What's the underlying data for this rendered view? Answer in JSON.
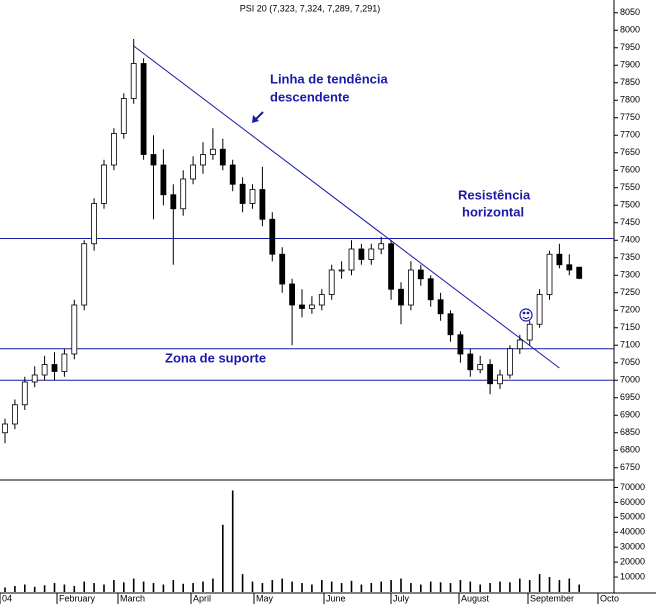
{
  "chart_data": {
    "type": "candlestick",
    "title": "PSI 20 (7,323, 7,324, 7,289, 7,291)",
    "annotations": [
      "Linha de tendência",
      "descendente",
      "Resistência",
      "horizontal",
      "Zona de suporte"
    ],
    "x_labels": [
      "04",
      "February",
      "March",
      "April",
      "May",
      "June",
      "July",
      "August",
      "September",
      "Octo"
    ],
    "open": [
      6850,
      6875,
      6930,
      6995,
      7015,
      7045,
      7025,
      7075,
      7215,
      7390,
      7505,
      7615,
      7705,
      7805,
      7905,
      7645,
      7615,
      7530,
      7490,
      7575,
      7615,
      7645,
      7660,
      7615,
      7560,
      7505,
      7545,
      7460,
      7360,
      7275,
      7215,
      7205,
      7215,
      7245,
      7315,
      7315,
      7375,
      7345,
      7375,
      7390,
      7260,
      7215,
      7315,
      7290,
      7230,
      7190,
      7130,
      7075,
      7030,
      7045,
      6990,
      7015,
      7090,
      7115,
      7160,
      7245,
      7360,
      7330,
      7323
    ],
    "high": [
      6890,
      6945,
      7010,
      7040,
      7070,
      7080,
      7090,
      7230,
      7400,
      7520,
      7630,
      7720,
      7820,
      7975,
      7920,
      7700,
      7660,
      7560,
      7600,
      7640,
      7680,
      7720,
      7690,
      7630,
      7580,
      7560,
      7610,
      7480,
      7380,
      7290,
      7260,
      7240,
      7260,
      7330,
      7340,
      7400,
      7390,
      7390,
      7410,
      7400,
      7280,
      7340,
      7330,
      7300,
      7250,
      7200,
      7140,
      7090,
      7070,
      7060,
      7030,
      7100,
      7130,
      7170,
      7260,
      7370,
      7390,
      7360,
      7324
    ],
    "low": [
      6820,
      6860,
      6915,
      6980,
      7000,
      7000,
      7010,
      7060,
      7200,
      7370,
      7490,
      7600,
      7690,
      7790,
      7630,
      7460,
      7500,
      7330,
      7470,
      7560,
      7590,
      7630,
      7600,
      7540,
      7480,
      7490,
      7440,
      7340,
      7250,
      7100,
      7180,
      7190,
      7200,
      7230,
      7290,
      7300,
      7330,
      7330,
      7360,
      7230,
      7160,
      7200,
      7270,
      7210,
      7170,
      7110,
      7050,
      7010,
      7020,
      6960,
      6975,
      7005,
      7075,
      7100,
      7150,
      7230,
      7320,
      7300,
      7289
    ],
    "close": [
      6875,
      6930,
      6995,
      7015,
      7045,
      7025,
      7075,
      7215,
      7390,
      7505,
      7615,
      7705,
      7805,
      7905,
      7645,
      7615,
      7530,
      7490,
      7575,
      7615,
      7645,
      7660,
      7615,
      7560,
      7505,
      7545,
      7460,
      7360,
      7275,
      7215,
      7205,
      7215,
      7245,
      7315,
      7315,
      7375,
      7345,
      7375,
      7390,
      7260,
      7215,
      7315,
      7290,
      7230,
      7190,
      7130,
      7075,
      7030,
      7045,
      6990,
      7015,
      7090,
      7115,
      7160,
      7245,
      7360,
      7330,
      7315,
      7291
    ],
    "volume": [
      3000,
      4000,
      5000,
      3500,
      4500,
      6000,
      5000,
      4000,
      7000,
      6000,
      5000,
      8000,
      6500,
      9000,
      7000,
      6000,
      5000,
      8000,
      5500,
      6000,
      7000,
      9000,
      45000,
      68000,
      12000,
      7000,
      6000,
      8000,
      9000,
      7000,
      6000,
      5000,
      8000,
      7000,
      6000,
      7500,
      5000,
      6000,
      7000,
      8000,
      9000,
      6000,
      5000,
      7000,
      6500,
      6000,
      8000,
      7000,
      5000,
      6000,
      7000,
      6500,
      9000,
      8000,
      12000,
      10000,
      8000,
      9000,
      5000
    ],
    "resistance": 7405,
    "support": [
      7090,
      7000
    ],
    "trendline": [
      7955,
      7035
    ],
    "ylim": [
      6735,
      8075
    ],
    "yticks": [
      6750,
      6800,
      6850,
      6900,
      6950,
      7000,
      7050,
      7100,
      7150,
      7200,
      7250,
      7300,
      7350,
      7400,
      7450,
      7500,
      7550,
      7600,
      7650,
      7700,
      7750,
      7800,
      7850,
      7900,
      7950,
      8000,
      8050
    ],
    "volume_ylim": [
      0,
      75000
    ],
    "volume_ticks": [
      10000,
      20000,
      30000,
      40000,
      50000,
      60000,
      70000
    ],
    "line_color": "#1a1aa8"
  }
}
